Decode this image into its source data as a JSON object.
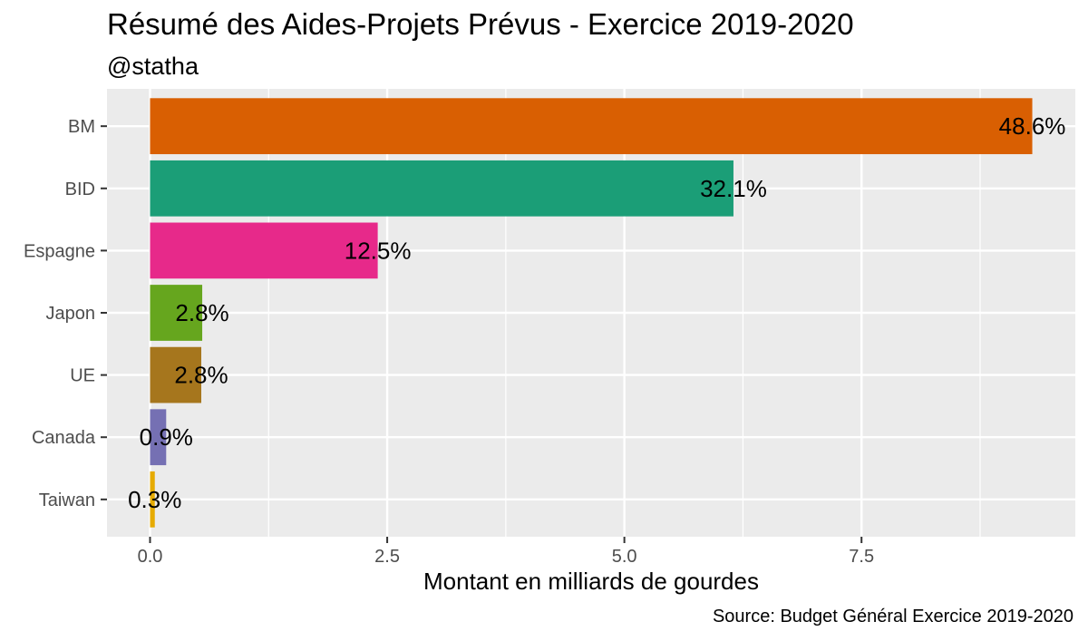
{
  "chart_data": {
    "type": "bar",
    "orientation": "horizontal",
    "title": "Résumé des Aides-Projets Prévus - Exercice 2019-2020",
    "subtitle": "@statha",
    "caption": "Source: Budget Général Exercice 2019-2020",
    "xlabel": "Montant en milliards de gourdes",
    "ylabel": "",
    "xlim": [
      -0.45,
      9.8
    ],
    "x_ticks": [
      0,
      2.5,
      5,
      7.5
    ],
    "x_tick_labels": [
      "0.0",
      "2.5",
      "5.0",
      "7.5"
    ],
    "grid": true,
    "categories": [
      "BM",
      "BID",
      "Espagne",
      "Japon",
      "UE",
      "Canada",
      "Taiwan"
    ],
    "values": [
      9.3,
      6.15,
      2.4,
      0.55,
      0.54,
      0.17,
      0.05
    ],
    "labels": [
      "48.6%",
      "32.1%",
      "12.5%",
      "2.8%",
      "2.8%",
      "0.9%",
      "0.3%"
    ],
    "colors": [
      "#D95F02",
      "#1B9E77",
      "#E7298A",
      "#66A61E",
      "#A6761D",
      "#7570B3",
      "#E6AB02"
    ],
    "panel_background": "#EBEBEB",
    "grid_color": "#FFFFFF"
  }
}
